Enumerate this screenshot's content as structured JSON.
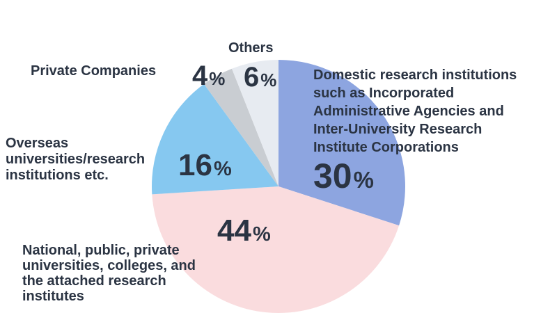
{
  "chart_data": {
    "type": "pie",
    "unit": "%",
    "start": "12 o'clock, clockwise",
    "slices": [
      {
        "label_lines": [
          "Domestic research institutions",
          "such as Incorporated",
          "Administrative Agencies and",
          "Inter-University Research",
          "Institute Corporations"
        ],
        "value": 30,
        "color": "#8da5e0"
      },
      {
        "label_lines": [
          "National, public, private",
          "universities, colleges, and",
          "the attached research",
          "institutes"
        ],
        "value": 44,
        "color": "#fadcde"
      },
      {
        "label_lines": [
          "Overseas",
          "universities/research",
          "institutions etc."
        ],
        "value": 16,
        "color": "#86c8f0"
      },
      {
        "label_lines": [
          "Private Companies"
        ],
        "value": 4,
        "color": "#c9cdd2"
      },
      {
        "label_lines": [
          "Others"
        ],
        "value": 6,
        "color": "#e7ebf1"
      }
    ]
  }
}
